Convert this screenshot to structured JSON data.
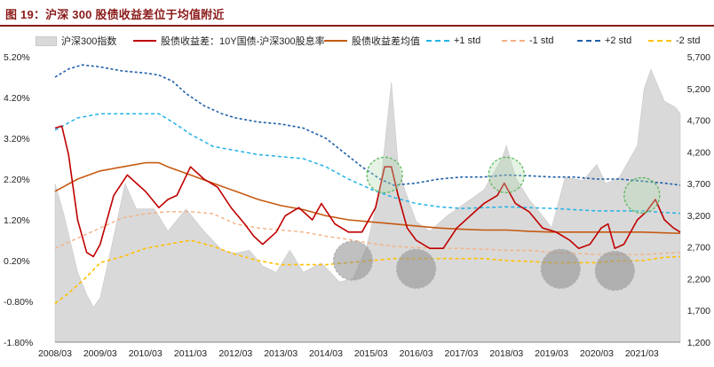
{
  "figure": {
    "title": "图 19：沪深 300 股债收益差位于均值附近"
  },
  "colors": {
    "title": "#8b1a1a",
    "index_area": "#d9d9d9",
    "spread_line": "#c00000",
    "mean_line": "#c55a11",
    "plus1_line": "#22b2e6",
    "minus1_line": "#f4b183",
    "plus2_line": "#1f5fa8",
    "minus2_line": "#ffc000",
    "green_circle": "#5cb85c",
    "gray_circle": "#b0b0b0"
  },
  "chart_data": {
    "type": "line",
    "x_tick_labels": [
      "2008/03",
      "2009/03",
      "2010/03",
      "2011/03",
      "2012/03",
      "2013/03",
      "2014/03",
      "2015/03",
      "2016/03",
      "2017/03",
      "2018/03",
      "2019/03",
      "2020/03",
      "2021/03"
    ],
    "y_left": {
      "tick_labels": [
        "5.20%",
        "4.20%",
        "3.20%",
        "2.20%",
        "1.20%",
        "0.20%",
        "-0.80%",
        "-1.80%"
      ],
      "range": [
        -1.8,
        5.2
      ]
    },
    "y_right": {
      "tick_labels": [
        "5,700",
        "5,200",
        "4,700",
        "4,200",
        "3,700",
        "3,200",
        "2,700",
        "2,200",
        "1,700",
        "1,200"
      ],
      "range": [
        1200,
        5700
      ]
    },
    "legend_position": "top",
    "series": [
      {
        "name": "沪深300指数",
        "kind": "area",
        "axis": "right",
        "x": [
          2008.0,
          2008.2,
          2008.5,
          2008.7,
          2008.85,
          2009.0,
          2009.25,
          2009.55,
          2009.8,
          2010.2,
          2010.5,
          2010.9,
          2011.3,
          2011.7,
          2012.0,
          2012.3,
          2012.6,
          2012.9,
          2013.2,
          2013.5,
          2013.9,
          2014.3,
          2014.6,
          2014.9,
          2015.2,
          2015.45,
          2015.6,
          2015.75,
          2016.0,
          2016.3,
          2016.7,
          2017.0,
          2017.5,
          2017.9,
          2018.0,
          2018.2,
          2018.5,
          2018.9,
          2019.0,
          2019.3,
          2019.7,
          2020.0,
          2020.2,
          2020.5,
          2020.9,
          2021.05,
          2021.2,
          2021.5,
          2021.75,
          2021.85
        ],
        "values": [
          3700,
          3200,
          2300,
          1950,
          1750,
          1900,
          2700,
          3700,
          3300,
          3300,
          2950,
          3300,
          2950,
          2650,
          2600,
          2650,
          2400,
          2300,
          2650,
          2300,
          2450,
          2150,
          2200,
          2700,
          3600,
          5300,
          4000,
          3600,
          3100,
          2950,
          3200,
          3350,
          3600,
          4100,
          4300,
          3800,
          3450,
          3100,
          3000,
          3800,
          3750,
          4000,
          3700,
          3800,
          4300,
          5200,
          5500,
          5000,
          4900,
          4800
        ]
      },
      {
        "name": "股债收益差：10Y国债-沪深300股息率",
        "kind": "line",
        "axis": "left",
        "x": [
          2008.0,
          2008.15,
          2008.3,
          2008.5,
          2008.7,
          2008.85,
          2009.0,
          2009.3,
          2009.6,
          2009.8,
          2010.0,
          2010.3,
          2010.5,
          2010.7,
          2011.0,
          2011.3,
          2011.6,
          2011.9,
          2012.2,
          2012.4,
          2012.6,
          2012.9,
          2013.1,
          2013.4,
          2013.7,
          2013.9,
          2014.2,
          2014.5,
          2014.8,
          2015.1,
          2015.3,
          2015.45,
          2015.6,
          2015.8,
          2016.0,
          2016.3,
          2016.6,
          2016.9,
          2017.2,
          2017.5,
          2017.8,
          2017.95,
          2018.2,
          2018.5,
          2018.8,
          2019.1,
          2019.4,
          2019.6,
          2019.85,
          2020.1,
          2020.25,
          2020.4,
          2020.6,
          2020.9,
          2021.1,
          2021.3,
          2021.5,
          2021.7,
          2021.85
        ],
        "values": [
          3.45,
          3.5,
          2.8,
          1.2,
          0.4,
          0.3,
          0.6,
          1.8,
          2.3,
          2.1,
          1.9,
          1.5,
          1.7,
          1.8,
          2.5,
          2.2,
          2.0,
          1.5,
          1.1,
          0.8,
          0.6,
          0.9,
          1.3,
          1.5,
          1.2,
          1.6,
          1.1,
          0.9,
          0.9,
          1.5,
          2.5,
          2.5,
          1.8,
          1.0,
          0.7,
          0.5,
          0.5,
          1.0,
          1.3,
          1.6,
          1.8,
          2.1,
          1.6,
          1.4,
          1.0,
          0.9,
          0.7,
          0.5,
          0.6,
          1.0,
          1.1,
          0.5,
          0.6,
          1.2,
          1.4,
          1.7,
          1.2,
          1.0,
          0.9
        ]
      },
      {
        "name": "股债收益差均值",
        "kind": "line",
        "axis": "left",
        "x": [
          2008.0,
          2008.5,
          2009.0,
          2009.5,
          2010.0,
          2010.3,
          2010.5,
          2011.0,
          2011.5,
          2012.0,
          2012.5,
          2013.0,
          2013.5,
          2014.0,
          2014.5,
          2015.0,
          2015.5,
          2016.0,
          2016.5,
          2017.0,
          2017.5,
          2018.0,
          2018.5,
          2019.0,
          2019.5,
          2020.0,
          2020.5,
          2021.0,
          2021.5,
          2021.85
        ],
        "values": [
          1.9,
          2.2,
          2.4,
          2.5,
          2.6,
          2.6,
          2.5,
          2.3,
          2.1,
          1.9,
          1.7,
          1.55,
          1.45,
          1.3,
          1.2,
          1.15,
          1.1,
          1.05,
          1.0,
          0.97,
          0.95,
          0.95,
          0.92,
          0.9,
          0.9,
          0.9,
          0.9,
          0.9,
          0.88,
          0.87
        ]
      },
      {
        "name": "+1 std",
        "kind": "line",
        "axis": "left",
        "x": [
          2008.0,
          2008.5,
          2009.0,
          2009.5,
          2010.0,
          2010.3,
          2010.6,
          2011.0,
          2011.5,
          2012.0,
          2012.5,
          2013.0,
          2013.5,
          2014.0,
          2014.5,
          2015.0,
          2015.5,
          2016.0,
          2016.5,
          2017.0,
          2017.5,
          2018.0,
          2018.5,
          2019.0,
          2019.5,
          2020.0,
          2020.5,
          2021.0,
          2021.5,
          2021.85
        ],
        "values": [
          3.4,
          3.7,
          3.8,
          3.8,
          3.8,
          3.8,
          3.6,
          3.3,
          3.0,
          2.9,
          2.8,
          2.75,
          2.7,
          2.5,
          2.2,
          1.95,
          1.75,
          1.6,
          1.52,
          1.48,
          1.5,
          1.52,
          1.5,
          1.48,
          1.45,
          1.42,
          1.42,
          1.42,
          1.38,
          1.36
        ]
      },
      {
        "name": "-1 std",
        "kind": "line",
        "axis": "left",
        "x": [
          2008.0,
          2008.5,
          2009.0,
          2009.5,
          2010.0,
          2010.5,
          2011.0,
          2011.5,
          2012.0,
          2012.5,
          2013.0,
          2013.5,
          2014.0,
          2014.5,
          2015.0,
          2015.5,
          2016.0,
          2016.5,
          2017.0,
          2017.5,
          2018.0,
          2018.5,
          2019.0,
          2019.5,
          2020.0,
          2020.5,
          2021.0,
          2021.5,
          2021.85
        ],
        "values": [
          0.5,
          0.75,
          1.0,
          1.25,
          1.35,
          1.4,
          1.4,
          1.35,
          1.1,
          1.0,
          0.95,
          0.9,
          0.8,
          0.72,
          0.62,
          0.55,
          0.52,
          0.5,
          0.5,
          0.48,
          0.45,
          0.45,
          0.4,
          0.38,
          0.35,
          0.35,
          0.35,
          0.38,
          0.4
        ]
      },
      {
        "name": "+2 std",
        "kind": "line",
        "axis": "left",
        "x": [
          2008.0,
          2008.3,
          2008.6,
          2009.0,
          2009.5,
          2010.0,
          2010.3,
          2010.6,
          2010.9,
          2011.3,
          2011.7,
          2012.0,
          2012.5,
          2013.0,
          2013.5,
          2014.0,
          2014.4,
          2014.8,
          2015.2,
          2015.5,
          2016.0,
          2016.5,
          2017.0,
          2017.5,
          2018.0,
          2018.5,
          2019.0,
          2019.5,
          2020.0,
          2020.5,
          2021.0,
          2021.5,
          2021.85
        ],
        "values": [
          4.7,
          4.9,
          5.0,
          4.95,
          4.85,
          4.8,
          4.75,
          4.6,
          4.3,
          4.0,
          3.8,
          3.7,
          3.6,
          3.55,
          3.45,
          3.2,
          2.85,
          2.5,
          2.2,
          2.05,
          2.1,
          2.2,
          2.25,
          2.25,
          2.3,
          2.28,
          2.25,
          2.25,
          2.2,
          2.2,
          2.15,
          2.1,
          2.05
        ]
      },
      {
        "name": "-2 std",
        "kind": "line",
        "axis": "left",
        "x": [
          2008.0,
          2008.3,
          2008.7,
          2009.0,
          2009.5,
          2010.0,
          2010.5,
          2011.0,
          2011.5,
          2012.0,
          2012.5,
          2013.0,
          2013.5,
          2014.0,
          2014.5,
          2015.0,
          2015.5,
          2016.0,
          2016.5,
          2017.0,
          2017.5,
          2018.0,
          2018.5,
          2019.0,
          2019.5,
          2020.0,
          2020.5,
          2021.0,
          2021.5,
          2021.85
        ],
        "values": [
          -0.85,
          -0.6,
          -0.2,
          0.15,
          0.3,
          0.5,
          0.6,
          0.7,
          0.55,
          0.35,
          0.2,
          0.1,
          0.1,
          0.1,
          0.15,
          0.2,
          0.25,
          0.25,
          0.25,
          0.25,
          0.25,
          0.2,
          0.18,
          0.15,
          0.15,
          0.15,
          0.2,
          0.2,
          0.28,
          0.3
        ]
      }
    ],
    "highlight_circles": {
      "green": [
        {
          "x": 2015.3,
          "y": 2.3
        },
        {
          "x": 2018.0,
          "y": 2.3
        },
        {
          "x": 2021.0,
          "y": 1.8
        }
      ],
      "gray": [
        {
          "x": 2014.6,
          "y": 0.2
        },
        {
          "x": 2016.0,
          "y": 0.0
        },
        {
          "x": 2019.2,
          "y": 0.0
        },
        {
          "x": 2020.4,
          "y": -0.05
        }
      ]
    }
  }
}
